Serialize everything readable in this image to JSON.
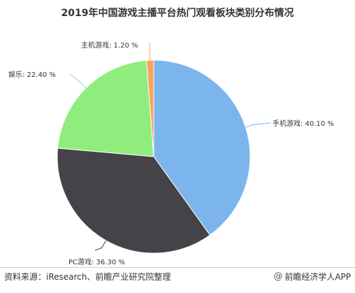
{
  "chart_data": {
    "type": "pie",
    "title": "2019年中国游戏主播平台热门观看板块类别分布情况",
    "slices": [
      {
        "label": "手机游戏: 40.10 %",
        "name": "手机游戏",
        "value": 40.1,
        "color": "#7cb5ec"
      },
      {
        "label": "PC游戏: 36.30 %",
        "name": "PC游戏",
        "value": 36.3,
        "color": "#434348"
      },
      {
        "label": "娱乐: 22.40 %",
        "name": "娱乐",
        "value": 22.4,
        "color": "#90ed7d"
      },
      {
        "label": "主机游戏: 1.20 %",
        "name": "主机游戏",
        "value": 1.2,
        "color": "#f7a35c"
      }
    ]
  },
  "footer": {
    "source": "资料来源：iResearch、前瞻产业研究院整理",
    "brand": "前瞻经济学人APP",
    "brand_icon": "at-icon"
  }
}
